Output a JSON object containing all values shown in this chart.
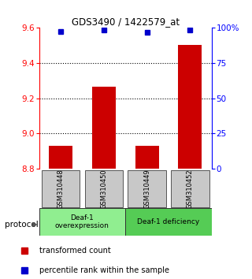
{
  "title": "GDS3490 / 1422579_at",
  "samples": [
    "GSM310448",
    "GSM310450",
    "GSM310449",
    "GSM310452"
  ],
  "bar_values": [
    8.93,
    9.265,
    8.93,
    9.505
  ],
  "percentile_values": [
    97.5,
    98.5,
    97.0,
    98.8
  ],
  "ylim_left": [
    8.8,
    9.6
  ],
  "ylim_right": [
    0,
    100
  ],
  "yticks_left": [
    8.8,
    9.0,
    9.2,
    9.4,
    9.6
  ],
  "yticks_right": [
    0,
    25,
    50,
    75,
    100
  ],
  "ytick_labels_right": [
    "0",
    "25",
    "50",
    "75",
    "100%"
  ],
  "bar_color": "#cc0000",
  "square_color": "#0000cc",
  "bar_bottom": 8.8,
  "groups": [
    {
      "label": "Deaf-1\noverexpression",
      "start": 0,
      "end": 2,
      "color": "#90ee90"
    },
    {
      "label": "Deaf-1 deficiency",
      "start": 2,
      "end": 4,
      "color": "#55cc55"
    }
  ],
  "protocol_label": "protocol",
  "legend_items": [
    {
      "color": "#cc0000",
      "label": "transformed count"
    },
    {
      "color": "#0000cc",
      "label": "percentile rank within the sample"
    }
  ],
  "sample_box_color": "#c8c8c8",
  "grid_yticks": [
    9.0,
    9.2,
    9.4
  ],
  "bar_width": 0.55
}
